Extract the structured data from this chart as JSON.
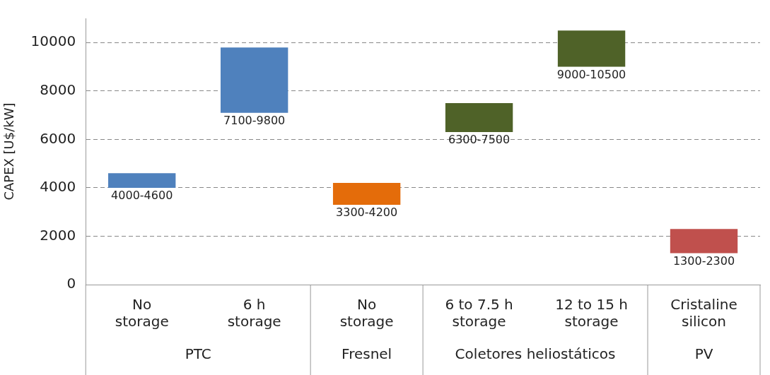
{
  "chart_data": {
    "type": "bar",
    "ylabel": "CAPEX [U$/kW]",
    "categories": [
      "No storage",
      "6 h storage",
      "No storage",
      "6 to 7.5 h storage",
      "12 to 15 h storage",
      "Cristaline silicon"
    ],
    "base": [
      4000,
      7100,
      3300,
      6300,
      9000,
      1300
    ],
    "values": [
      600,
      2700,
      900,
      1200,
      1500,
      1000
    ],
    "colors": [
      "#4f81bd",
      "#4f81bd",
      "#e46c0a",
      "#4f6228",
      "#4f6228",
      "#c0504d"
    ],
    "value_labels": [
      "4000-4600",
      "7100-9800",
      "3300-4200",
      "6300-7500",
      "9000-10500",
      "1300-2300"
    ],
    "annotations": [
      "PTC",
      "Fresnel",
      "Coletores heliostáticos",
      "PV"
    ],
    "ylim": [
      0,
      11000
    ],
    "yticks": [
      0,
      2000,
      4000,
      6000,
      8000,
      10000
    ],
    "grid": "y",
    "legend": false
  }
}
